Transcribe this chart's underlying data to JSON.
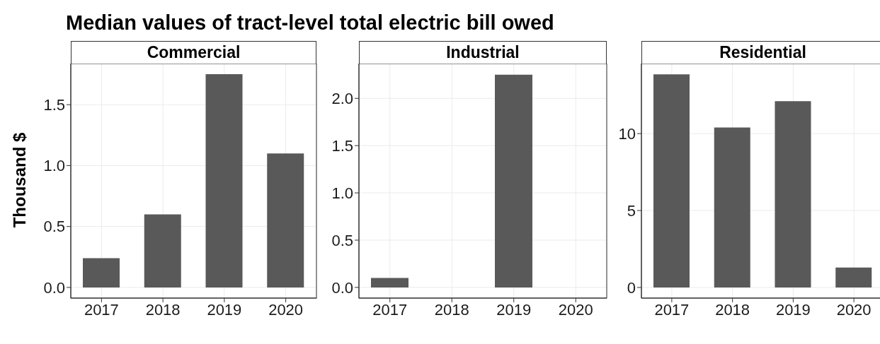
{
  "chart_data": [
    {
      "type": "bar",
      "title": "Median values of tract-level total electric bill owed",
      "subtitle": "Commercial",
      "ylabel": "Thousand $",
      "categories": [
        "2017",
        "2018",
        "2019",
        "2020"
      ],
      "values": [
        0.24,
        0.6,
        1.75,
        1.1
      ],
      "color": "#595959",
      "ylim": [
        -0.0875,
        1.8375
      ],
      "yticks": [
        {
          "value": 0,
          "label": "0.0"
        },
        0.5,
        {
          "value": 1,
          "label": "1.0"
        },
        1.5
      ],
      "grid": true
    },
    {
      "type": "bar",
      "subtitle": "Industrial",
      "categories": [
        "2017",
        "2018",
        "2019",
        "2020"
      ],
      "values": [
        0.1,
        null,
        2.25,
        null
      ],
      "color": "#595959",
      "ylim": [
        -0.113,
        2.368
      ],
      "yticks": [
        {
          "value": 0,
          "label": "0.0"
        },
        0.5,
        {
          "value": 1,
          "label": "1.0"
        },
        1.5,
        {
          "value": 2,
          "label": "2.0"
        }
      ],
      "grid": true
    },
    {
      "type": "bar",
      "subtitle": "Residential",
      "categories": [
        "2017",
        "2018",
        "2019",
        "2020"
      ],
      "values": [
        13.85,
        10.4,
        12.1,
        1.3
      ],
      "color": "#595959",
      "ylim": [
        -0.69,
        14.55
      ],
      "yticks": [
        0,
        5,
        10
      ],
      "grid": true
    }
  ]
}
